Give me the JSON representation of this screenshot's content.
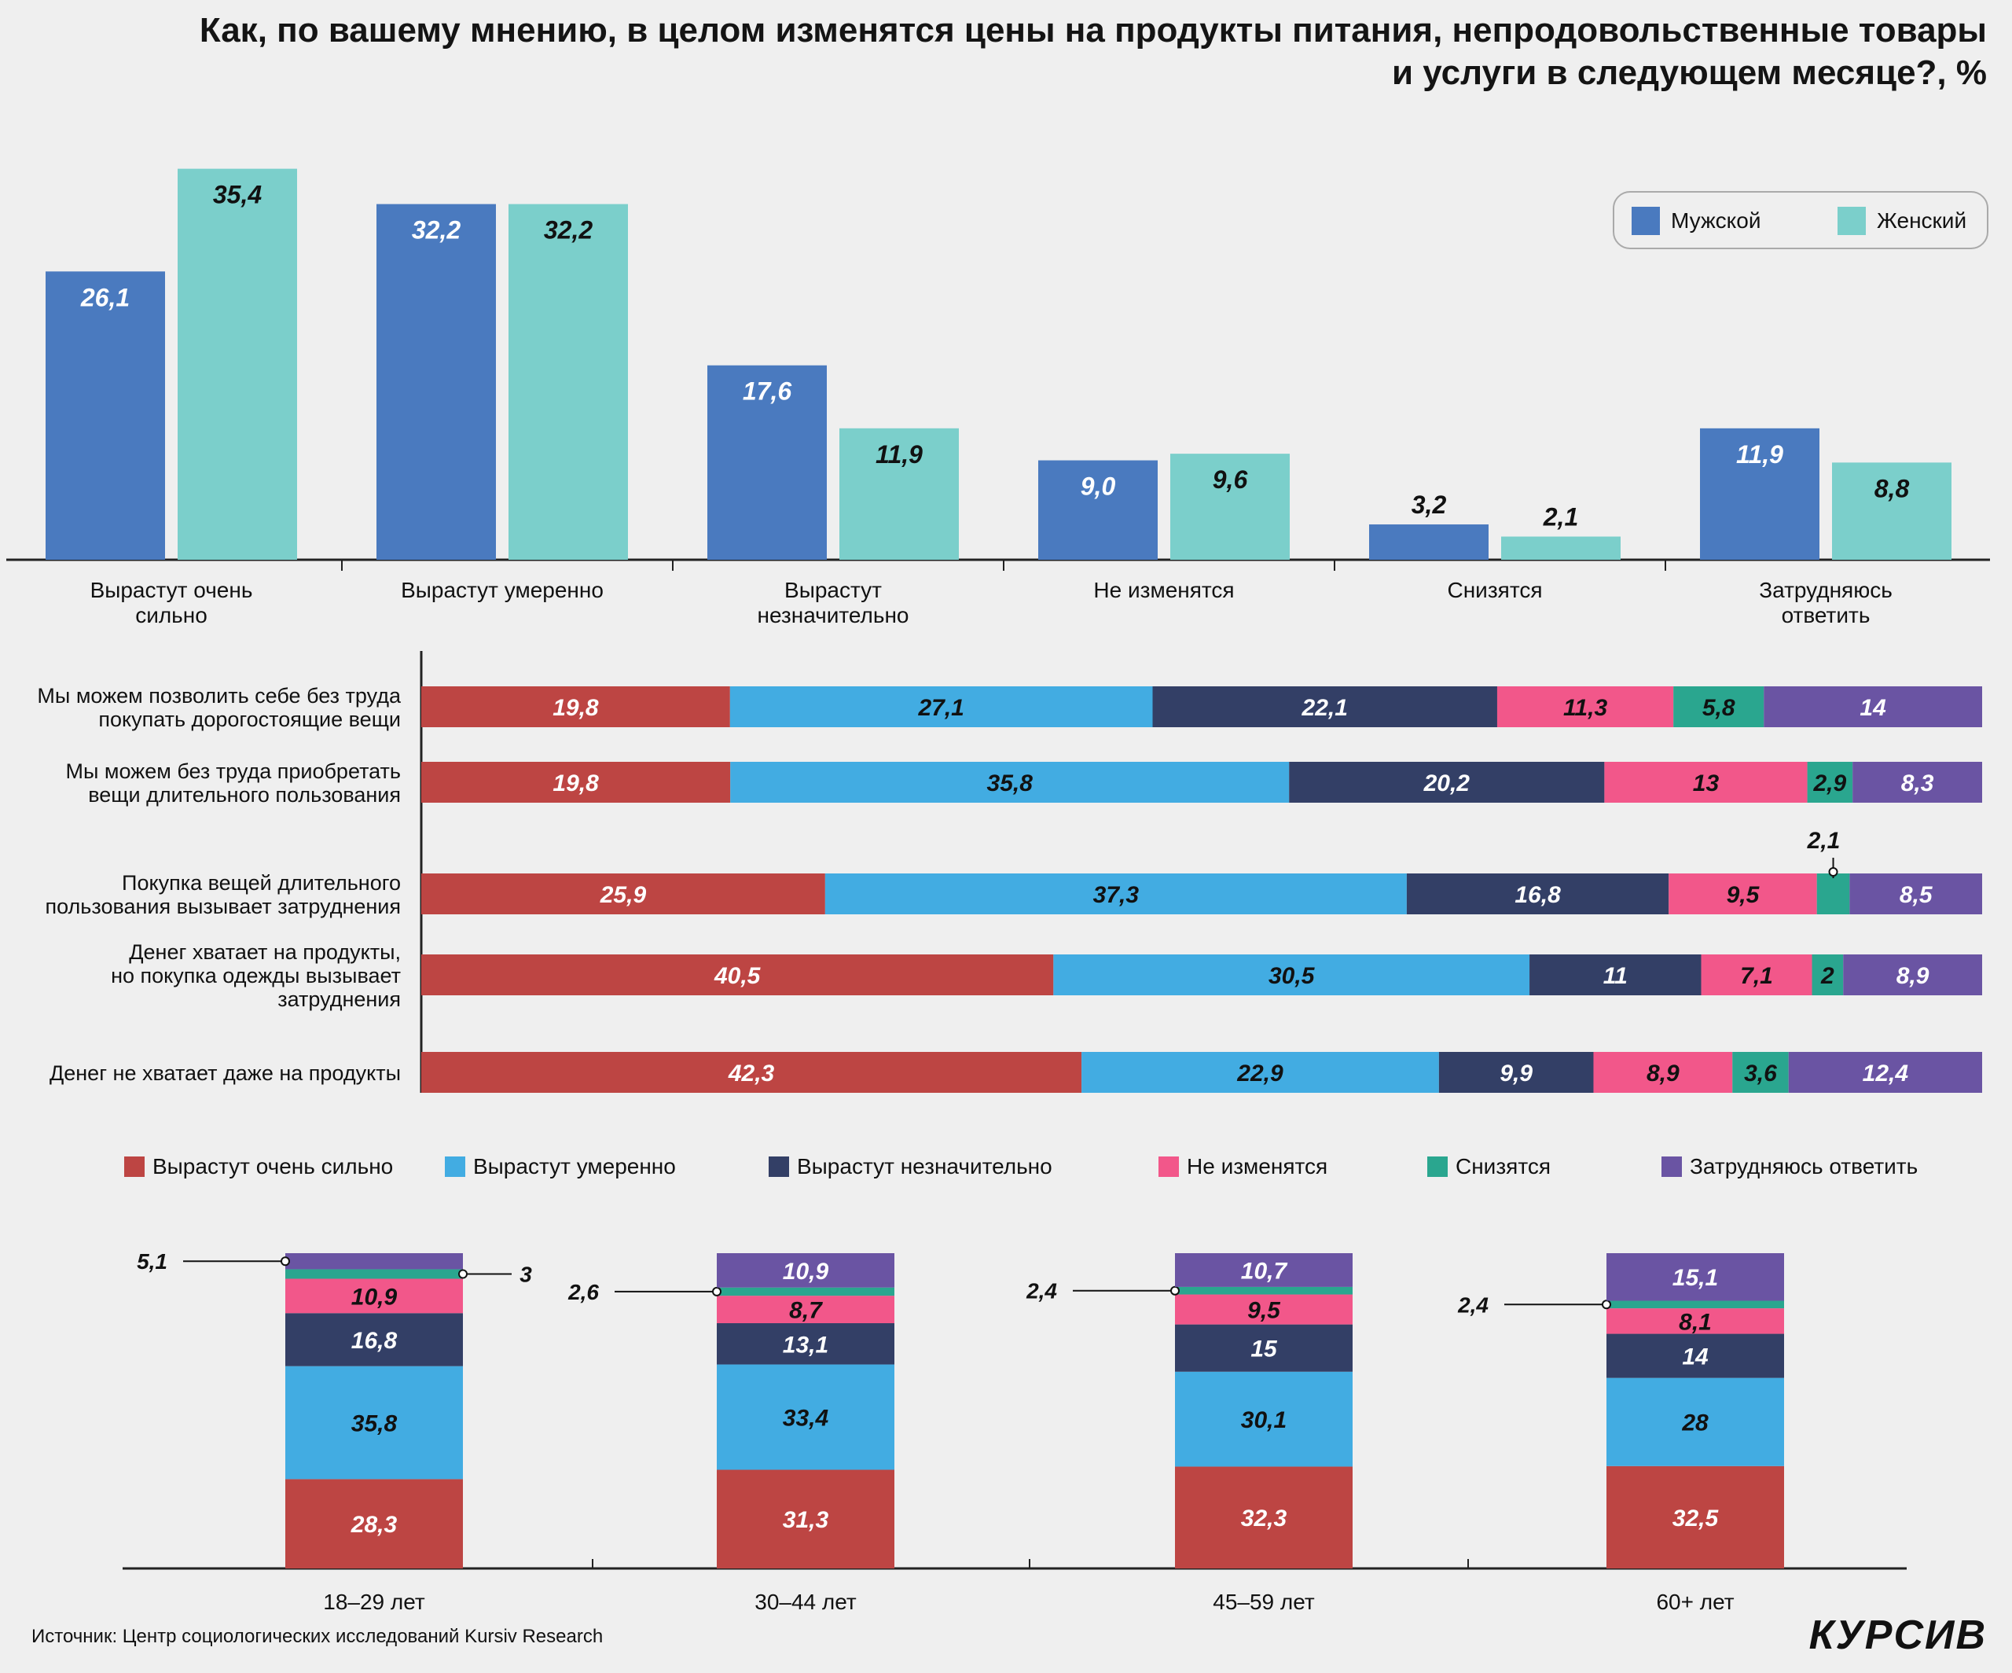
{
  "title": "Как, по вашему мнению, в целом изменятся цены на продукты питания, непродовольственные товары и услуги в следующем месяце?, %",
  "colors": {
    "male": "#4a7abf",
    "female": "#7bcfcb",
    "strong": "#bd4543",
    "moderate": "#42ace2",
    "slight": "#333f66",
    "nochange": "#f2578a",
    "decrease": "#2aa68f",
    "hard": "#6a54a3"
  },
  "legend_top": [
    {
      "label": "Мужской",
      "color": "#4a7abf"
    },
    {
      "label": "Женский",
      "color": "#7bcfcb"
    }
  ],
  "legend_mid": [
    {
      "label": "Вырастут очень сильно",
      "color": "#bd4543"
    },
    {
      "label": "Вырастут умеренно",
      "color": "#42ace2"
    },
    {
      "label": "Вырастут незначительно",
      "color": "#333f66"
    },
    {
      "label": "Не изменятся",
      "color": "#f2578a"
    },
    {
      "label": "Снизятся",
      "color": "#2aa68f"
    },
    {
      "label": "Затрудняюсь ответить",
      "color": "#6a54a3"
    }
  ],
  "chart_data": [
    {
      "type": "bar",
      "categories": [
        "Вырастут очень сильно",
        "Вырастут умеренно",
        "Вырастут незначительно",
        "Не изменятся",
        "Снизятся",
        "Затрудняюсь ответить"
      ],
      "series": [
        {
          "name": "Мужской",
          "values": [
            26.1,
            32.2,
            17.6,
            9.0,
            3.2,
            11.9
          ],
          "labels": [
            "26,1",
            "32,2",
            "17,6",
            "9,0",
            "3,2",
            "11,9"
          ]
        },
        {
          "name": "Женский",
          "values": [
            35.4,
            32.2,
            11.9,
            9.6,
            2.1,
            8.8
          ],
          "labels": [
            "35,4",
            "32,2",
            "11,9",
            "9,6",
            "2,1",
            "8,8"
          ]
        }
      ],
      "legend": "top-right"
    },
    {
      "type": "bar",
      "orientation": "horizontal",
      "stacked": true,
      "categories": [
        "Мы можем позволить себе без труда покупать дорогостоящие вещи",
        "Мы можем без труда приобретать вещи длительного пользования",
        "Покупка вещей длительного пользования вызывает затруднения",
        "Денег хватает на продукты, но покупка одежды вызывает затруднения",
        "Денег не хватает даже на продукты"
      ],
      "series": [
        {
          "name": "Вырастут очень сильно",
          "values": [
            19.8,
            19.8,
            25.9,
            40.5,
            42.3
          ],
          "labels": [
            "19,8",
            "19,8",
            "25,9",
            "40,5",
            "42,3"
          ]
        },
        {
          "name": "Вырастут умеренно",
          "values": [
            27.1,
            35.8,
            37.3,
            30.5,
            22.9
          ],
          "labels": [
            "27,1",
            "35,8",
            "37,3",
            "30,5",
            "22,9"
          ]
        },
        {
          "name": "Вырастут незначительно",
          "values": [
            22.1,
            20.2,
            16.8,
            11,
            9.9
          ],
          "labels": [
            "22,1",
            "20,2",
            "16,8",
            "11",
            "9,9"
          ]
        },
        {
          "name": "Не изменятся",
          "values": [
            11.3,
            13,
            9.5,
            7.1,
            8.9
          ],
          "labels": [
            "11,3",
            "13",
            "9,5",
            "7,1",
            "8,9"
          ]
        },
        {
          "name": "Снизятся",
          "values": [
            5.8,
            2.9,
            2.1,
            2,
            3.6
          ],
          "labels": [
            "5,8",
            "2,9",
            "2,1",
            "2",
            "3,6"
          ]
        },
        {
          "name": "Затрудняюсь ответить",
          "values": [
            14,
            8.3,
            8.5,
            8.9,
            12.4
          ],
          "labels": [
            "14",
            "8,3",
            "8,5",
            "8,9",
            "12,4"
          ]
        }
      ],
      "legend": "bottom"
    },
    {
      "type": "bar",
      "stacked": true,
      "categories": [
        "18–29 лет",
        "30–44 лет",
        "45–59 лет",
        "60+ лет"
      ],
      "series": [
        {
          "name": "Вырастут очень сильно",
          "values": [
            28.3,
            31.3,
            32.3,
            32.5
          ],
          "labels": [
            "28,3",
            "31,3",
            "32,3",
            "32,5"
          ]
        },
        {
          "name": "Вырастут умеренно",
          "values": [
            35.8,
            33.4,
            30.1,
            28
          ],
          "labels": [
            "35,8",
            "33,4",
            "30,1",
            "28"
          ]
        },
        {
          "name": "Вырастут незначительно",
          "values": [
            16.8,
            13.1,
            15,
            14
          ],
          "labels": [
            "16,8",
            "13,1",
            "15",
            "14"
          ]
        },
        {
          "name": "Не изменятся",
          "values": [
            10.9,
            8.7,
            9.5,
            8.1
          ],
          "labels": [
            "10,9",
            "8,7",
            "9,5",
            "8,1"
          ]
        },
        {
          "name": "Снизятся",
          "values": [
            3,
            2.6,
            2.4,
            2.4
          ],
          "labels": [
            "3",
            "2,6",
            "2,4",
            "2,4"
          ]
        },
        {
          "name": "Затрудняюсь ответить",
          "values": [
            5.1,
            10.9,
            10.7,
            15.1
          ],
          "labels": [
            "5,1",
            "10,9",
            "10,7",
            "15,1"
          ]
        }
      ]
    }
  ],
  "source": "Источник: Центр социологических исследований Kursiv Research",
  "brand": "КУРСИВ"
}
